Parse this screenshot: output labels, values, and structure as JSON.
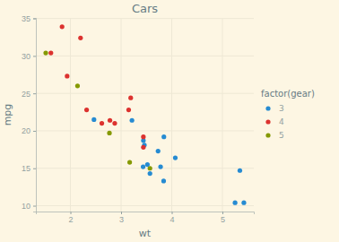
{
  "chart_data": {
    "type": "scatter",
    "title": "Cars",
    "x_label": "wt",
    "y_label": "mpg",
    "legend_title": "factor(gear)",
    "legend": "right",
    "grid": true,
    "marker": "circle",
    "xlim": [
      1.318,
      5.62
    ],
    "xticks": [
      2,
      3,
      4,
      5
    ],
    "ylim": [
      9.225,
      35.075
    ],
    "yticks": [
      10,
      15,
      20,
      25,
      30,
      35
    ],
    "series": [
      {
        "name": "3",
        "color": "#268bd2",
        "x": [
          3.215,
          3.44,
          3.46,
          3.57,
          4.07,
          3.73,
          3.78,
          5.25,
          5.424,
          5.345,
          2.465,
          3.52,
          3.435,
          3.84,
          3.845
        ],
        "values": [
          21.4,
          18.7,
          18.1,
          14.3,
          16.4,
          17.3,
          15.2,
          10.4,
          10.4,
          14.7,
          21.5,
          15.5,
          15.2,
          13.3,
          19.2
        ]
      },
      {
        "name": "4",
        "color": "#dc322f",
        "x": [
          2.62,
          2.875,
          2.32,
          3.19,
          3.15,
          3.44,
          3.44,
          2.2,
          1.615,
          1.835,
          1.935,
          2.78
        ],
        "values": [
          21.0,
          21.0,
          22.8,
          24.4,
          22.8,
          19.2,
          17.8,
          32.4,
          30.4,
          33.9,
          27.3,
          21.4
        ]
      },
      {
        "name": "5",
        "color": "#859900",
        "x": [
          2.14,
          1.513,
          3.17,
          2.77,
          3.57
        ],
        "values": [
          26.0,
          30.4,
          15.8,
          19.7,
          15.0
        ]
      }
    ]
  }
}
